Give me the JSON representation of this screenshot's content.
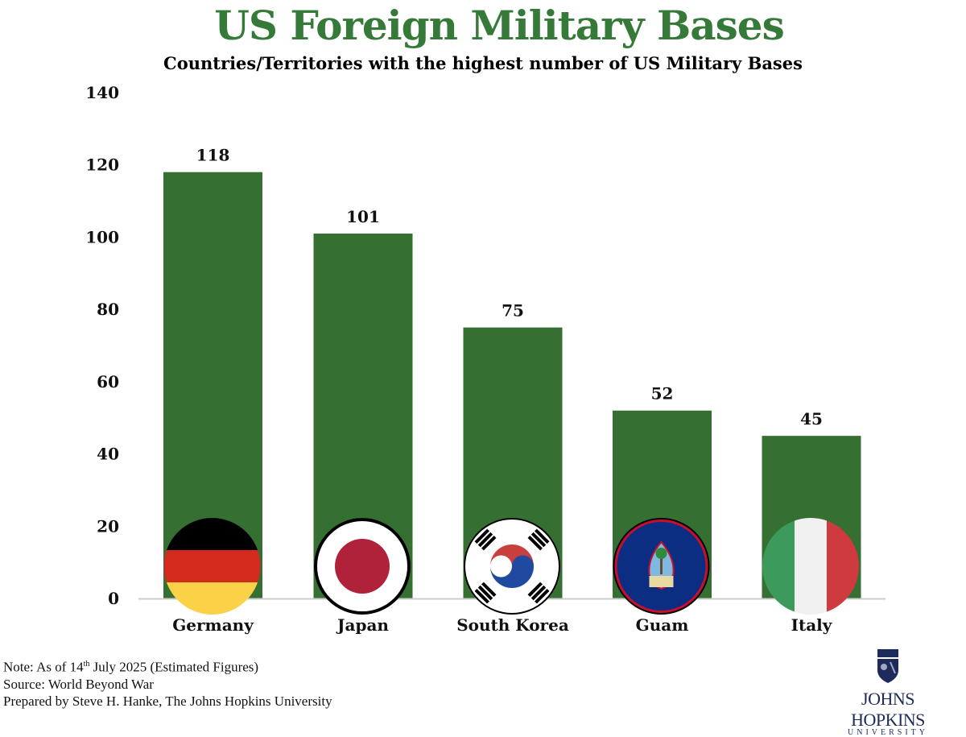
{
  "chart_data": {
    "type": "bar",
    "title": "US Foreign Military Bases",
    "subtitle": "Countries/Territories with the highest number of US Military Bases",
    "categories": [
      "Germany",
      "Japan",
      "South Korea",
      "Guam",
      "Italy"
    ],
    "values": [
      118,
      101,
      75,
      52,
      45
    ],
    "data_labels": [
      "118",
      "101",
      "75",
      "52",
      "45"
    ],
    "ylim": [
      0,
      140
    ],
    "yticks": [
      "0",
      "20",
      "40",
      "60",
      "80",
      "100",
      "120",
      "140"
    ],
    "grid": false,
    "bar_color": "#356f32",
    "title_color": "#357a38",
    "flags": [
      "germany-flag",
      "japan-flag",
      "south-korea-flag",
      "guam-flag",
      "italy-flag"
    ]
  },
  "notes": {
    "note_prefix": "Note: As of 14",
    "note_sup": "th",
    "note_suffix": " July 2025 (Estimated Figures)",
    "source": "Source: World Beyond War",
    "prepared": "Prepared by Steve H. Hanke, The Johns Hopkins University"
  },
  "logo": {
    "name": "JOHNS HOPKINS",
    "sub": "UNIVERSITY"
  }
}
